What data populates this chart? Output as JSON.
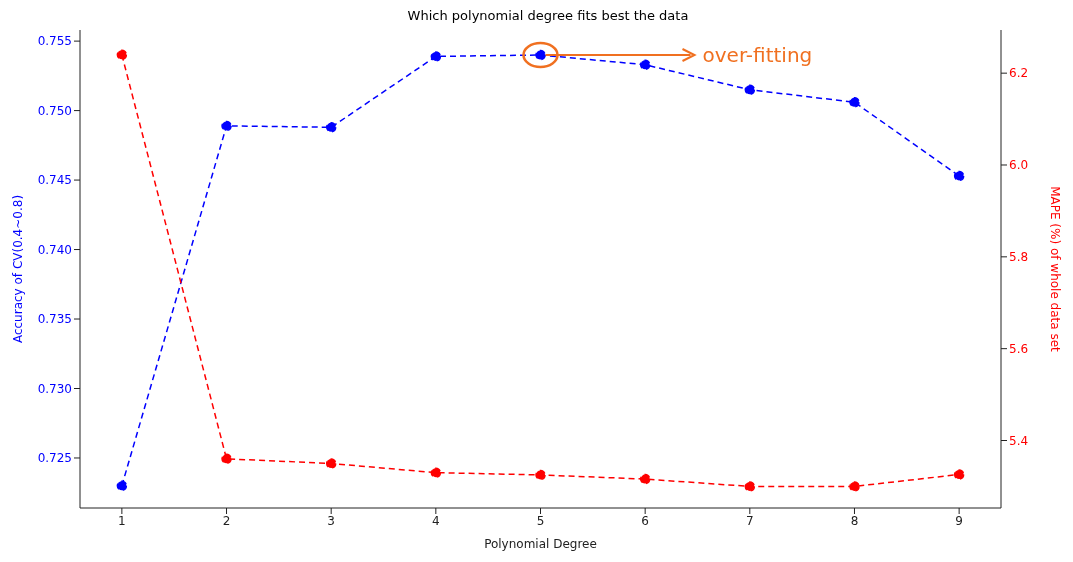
{
  "chart_data": {
    "type": "line",
    "title": "Which polynomial degree fits best the data",
    "xlabel": "Polynomial Degree",
    "ylabel": "Accuracy of CV(0.4~0.8)",
    "y2label": "MAPE (%) of whole data set",
    "x": [
      1,
      2,
      3,
      4,
      5,
      6,
      7,
      8,
      9
    ],
    "series": [
      {
        "color": "#0000ff",
        "values": [
          0.723,
          0.7489,
          0.7488,
          0.7539,
          0.754,
          0.7533,
          0.7515,
          0.7506,
          0.7453
        ]
      },
      {
        "color": "#ff0000",
        "axis": "y2",
        "values": [
          6.24,
          5.36,
          5.35,
          5.33,
          5.325,
          5.316,
          5.3,
          5.3,
          5.326
        ]
      }
    ],
    "xlim": [
      0.6,
      9.4
    ],
    "xticks": [
      1,
      2,
      3,
      4,
      5,
      6,
      7,
      8,
      9
    ],
    "ylim": [
      0.7214,
      0.7558
    ],
    "yticks": [
      0.725,
      {
        "value": 0.73,
        "label": "0.730"
      },
      0.735,
      {
        "value": 0.74,
        "label": "0.740"
      },
      0.745,
      {
        "value": 0.75,
        "label": "0.750"
      },
      0.755
    ],
    "y2lim": [
      5.253,
      6.294
    ],
    "y2ticks": [
      {
        "value": 5.4,
        "label": "5.4"
      },
      {
        "value": 5.6,
        "label": "5.6"
      },
      {
        "value": 5.8,
        "label": "5.8"
      },
      {
        "value": 6.0,
        "label": "6.0"
      },
      {
        "value": 6.2,
        "label": "6.2"
      }
    ],
    "annotations": [
      {
        "text": "over-fitting",
        "x": 5,
        "y": 0.754
      }
    ],
    "marker": "circle",
    "line_style": "dashed",
    "legend": false
  }
}
